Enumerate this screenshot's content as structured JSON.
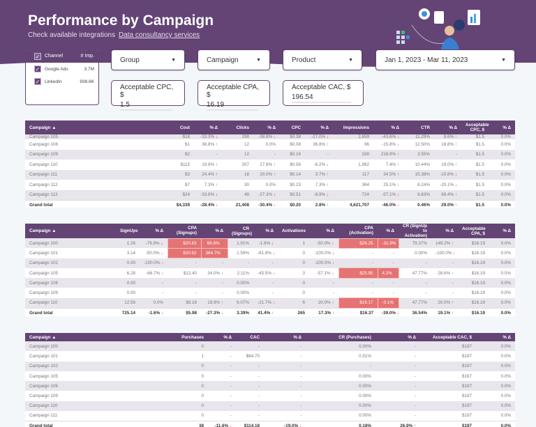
{
  "header": {
    "title": "Performance by Campaign",
    "link1": "Check available integrations",
    "link2": "Data consultancy services"
  },
  "colors": {
    "brand": "#634475",
    "highlight": "#e57373",
    "up": "#2e9e4a",
    "down": "#e53935"
  },
  "channels": {
    "col1": "Channel",
    "col2": "# Imp.",
    "items": [
      {
        "label": "Google Ads",
        "value": "3.7M"
      },
      {
        "label": "LinkedIn",
        "value": "938.6K"
      }
    ]
  },
  "filters": {
    "group": "Group",
    "campaign": "Campaign",
    "product": "Product",
    "date": "Jan 1, 2023 - Mar 11, 2023"
  },
  "inputs": {
    "cpc": {
      "label": "Acceptable CPC, $",
      "value": "1.5"
    },
    "cpa": {
      "label": "Acceptable CPA, $",
      "value": "16.19"
    },
    "cac": {
      "label": "Acceptable CAC, $",
      "value": "196.54"
    }
  },
  "tables": [
    {
      "headers": [
        "Campaign ▲",
        "Cost",
        "% Δ",
        "Clicks",
        "% Δ",
        "CPC",
        "% Δ",
        "Impressions",
        "% Δ",
        "CTR",
        "% Δ",
        "Acceptable CPC, $",
        "% Δ"
      ],
      "rows": [
        {
          "cells": [
            "Campaign 105",
            "$18",
            "-33.3% ↓",
            "298",
            "-38.8% ↓",
            "$0.38",
            "-27.0% ↓",
            "2,659",
            "-43.6% ↓",
            "11.29%",
            "8.6% ↑",
            "$1.5",
            "0.0%"
          ]
        },
        {
          "cells": [
            "Campaign 106",
            "$1",
            "36.8% ↑",
            "12",
            "0.0%",
            "$0.08",
            "36.8% ↑",
            "96",
            "-15.8% ↓",
            "12.50%",
            "18.8% ↑",
            "$1.5",
            "0.0%"
          ]
        },
        {
          "cells": [
            "Campaign 109",
            "$2",
            "-",
            "12",
            "-",
            "$0.16",
            "-",
            "338",
            "218.9% ↑",
            "3.55%",
            "-",
            "$1.5",
            "0.0%"
          ]
        },
        {
          "cells": [
            "Campaign 110",
            "$115",
            "19.9% ↑",
            "207",
            "27.8% ↑",
            "$0.56",
            "-6.2% ↓",
            "1,982",
            "7.4% ↑",
            "10.44%",
            "19.0% ↑",
            "$1.5",
            "0.0%"
          ]
        },
        {
          "cells": [
            "Campaign 111",
            "$3",
            "24.4% ↑",
            "18",
            "20.0% ↑",
            "$0.14",
            "3.7% ↑",
            "117",
            "34.5% ↑",
            "15.38%",
            "-10.8% ↓",
            "$1.5",
            "0.0%"
          ]
        },
        {
          "cells": [
            "Campaign 112",
            "$7",
            "7.3% ↑",
            "30",
            "0.0%",
            "$0.23",
            "7.3% ↑",
            "364",
            "25.1% ↑",
            "8.24%",
            "-20.1% ↓",
            "$1.5",
            "0.0%"
          ]
        },
        {
          "cells": [
            "Campaign 113",
            "$24",
            "-33.8% ↓",
            "48",
            "-27.3% ↓",
            "$0.51",
            "-8.9% ↓",
            "724",
            "-57.1% ↓",
            "6.63%",
            "69.4% ↑",
            "$1.5",
            "0.0%"
          ]
        }
      ],
      "total": [
        "Grand total",
        "$4,339",
        "-28.4% ↓",
        "21,408",
        "-30.4% ↓",
        "$0.20",
        "2.8% ↑",
        "4,621,707",
        "-46.0% ↓",
        "0.46%",
        "29.0% ↑",
        "$1.5",
        "0.0%"
      ]
    },
    {
      "headers": [
        "Campaign ▲",
        "SignUps",
        "% Δ",
        "CPA (Signups)",
        "% Δ",
        "CR (Signups)",
        "% Δ",
        "Activations",
        "% Δ",
        "CPA (Activation)",
        "% Δ",
        "CR (SignUp to Activation)",
        "% Δ",
        "Acceptable CPA, $",
        "% Δ"
      ],
      "rows": [
        {
          "cells": [
            "Campaign 100",
            "1.26",
            "-79.9% ↓",
            "$20.83",
            "69.6% ↑",
            "1.91%",
            "-1.8% ↓",
            "1",
            "-50.0% ↓",
            "$26.25",
            "-31.9% ↓",
            "79.37%",
            "149.2% ↑",
            "$16.19",
            "0.0%"
          ],
          "hl": [
            3,
            4,
            9,
            10
          ]
        },
        {
          "cells": [
            "Campaign 101",
            "3.14",
            "-50.0% ↓",
            "$20.62",
            "384.7% ↑",
            "1.59%",
            "-81.8% ↓",
            "0",
            "-100.0% ↓",
            "-",
            "-",
            "0.00%",
            "-100.0% ↓",
            "$16.19",
            "0.0%"
          ],
          "hl": [
            3,
            4
          ]
        },
        {
          "cells": [
            "Campaign 102",
            "0.00",
            "-100.0% ↓",
            "-",
            "-",
            "-",
            "-",
            "0",
            "-100.0% ↓",
            "-",
            "-",
            "-",
            "-",
            "$16.19",
            "0.0%"
          ]
        },
        {
          "cells": [
            "Campaign 105",
            "6.28",
            "-66.7% ↓",
            "$12.40",
            "34.0% ↑",
            "2.11%",
            "-45.5% ↓",
            "3",
            "-57.1% ↓",
            "$25.95",
            "4.2% ↑",
            "47.77%",
            "28.6% ↑",
            "$16.19",
            "0.0%"
          ],
          "hl": [
            9,
            10
          ]
        },
        {
          "cells": [
            "Campaign 106",
            "0.00",
            "-",
            "-",
            "-",
            "0.00%",
            "-",
            "0",
            "-",
            "-",
            "-",
            "-",
            "-",
            "$16.19",
            "0.0%"
          ]
        },
        {
          "cells": [
            "Campaign 109",
            "0.00",
            "-",
            "-",
            "-",
            "0.00%",
            "-",
            "0",
            "-",
            "-",
            "-",
            "-",
            "-",
            "$16.19",
            "0.0%"
          ]
        },
        {
          "cells": [
            "Campaign 110",
            "12.56",
            "0.0%",
            "$9.16",
            "19.9% ↑",
            "6.07%",
            "-21.7% ↓",
            "6",
            "20.0% ↑",
            "$19.17",
            "-0.1% ↓",
            "47.77%",
            "20.0% ↑",
            "$16.19",
            "0.0%"
          ],
          "hl": [
            9,
            10
          ]
        }
      ],
      "total": [
        "Grand total",
        "725.14",
        "-1.6% ↓",
        "$5.98",
        "-27.3% ↓",
        "3.39%",
        "41.4% ↑",
        "265",
        "17.3% ↑",
        "$16.37",
        "-39.0% ↓",
        "36.54%",
        "19.1% ↑",
        "$16.19",
        "0.0%"
      ]
    },
    {
      "headers": [
        "Campaign ▲",
        "Purchases",
        "% Δ",
        "CAC",
        "% Δ",
        "CR (Purchases)",
        "% Δ",
        "Acceptable CAC, $",
        "% Δ"
      ],
      "rows": [
        {
          "cells": [
            "Campaign 100",
            "0",
            "-",
            "-",
            "-",
            "0.00%",
            "-",
            "$197",
            "0.0%"
          ]
        },
        {
          "cells": [
            "Campaign 101",
            "1",
            "-",
            "$64.75",
            "-",
            "0.51%",
            "-",
            "$197",
            "0.0%"
          ]
        },
        {
          "cells": [
            "Campaign 102",
            "0",
            "-",
            "-",
            "-",
            "-",
            "-",
            "$197",
            "0.0%"
          ]
        },
        {
          "cells": [
            "Campaign 105",
            "0",
            "-",
            "-",
            "-",
            "0.00%",
            "-",
            "$197",
            "0.0%"
          ]
        },
        {
          "cells": [
            "Campaign 106",
            "0",
            "-",
            "-",
            "-",
            "0.00%",
            "-",
            "$197",
            "0.0%"
          ]
        },
        {
          "cells": [
            "Campaign 109",
            "0",
            "-",
            "-",
            "-",
            "0.00%",
            "-",
            "$197",
            "0.0%"
          ]
        },
        {
          "cells": [
            "Campaign 110",
            "0",
            "-",
            "-",
            "-",
            "0.00%",
            "-",
            "$197",
            "0.0%"
          ]
        },
        {
          "cells": [
            "Campaign 111",
            "0",
            "-",
            "-",
            "-",
            "0.00%",
            "-",
            "$197",
            "0.0%"
          ]
        }
      ],
      "total": [
        "Grand total",
        "38",
        "-11.6% ↓",
        "$114.18",
        "-19.0% ↓",
        "0.18%",
        "26.9% ↑",
        "$197",
        "0.0%"
      ]
    }
  ]
}
